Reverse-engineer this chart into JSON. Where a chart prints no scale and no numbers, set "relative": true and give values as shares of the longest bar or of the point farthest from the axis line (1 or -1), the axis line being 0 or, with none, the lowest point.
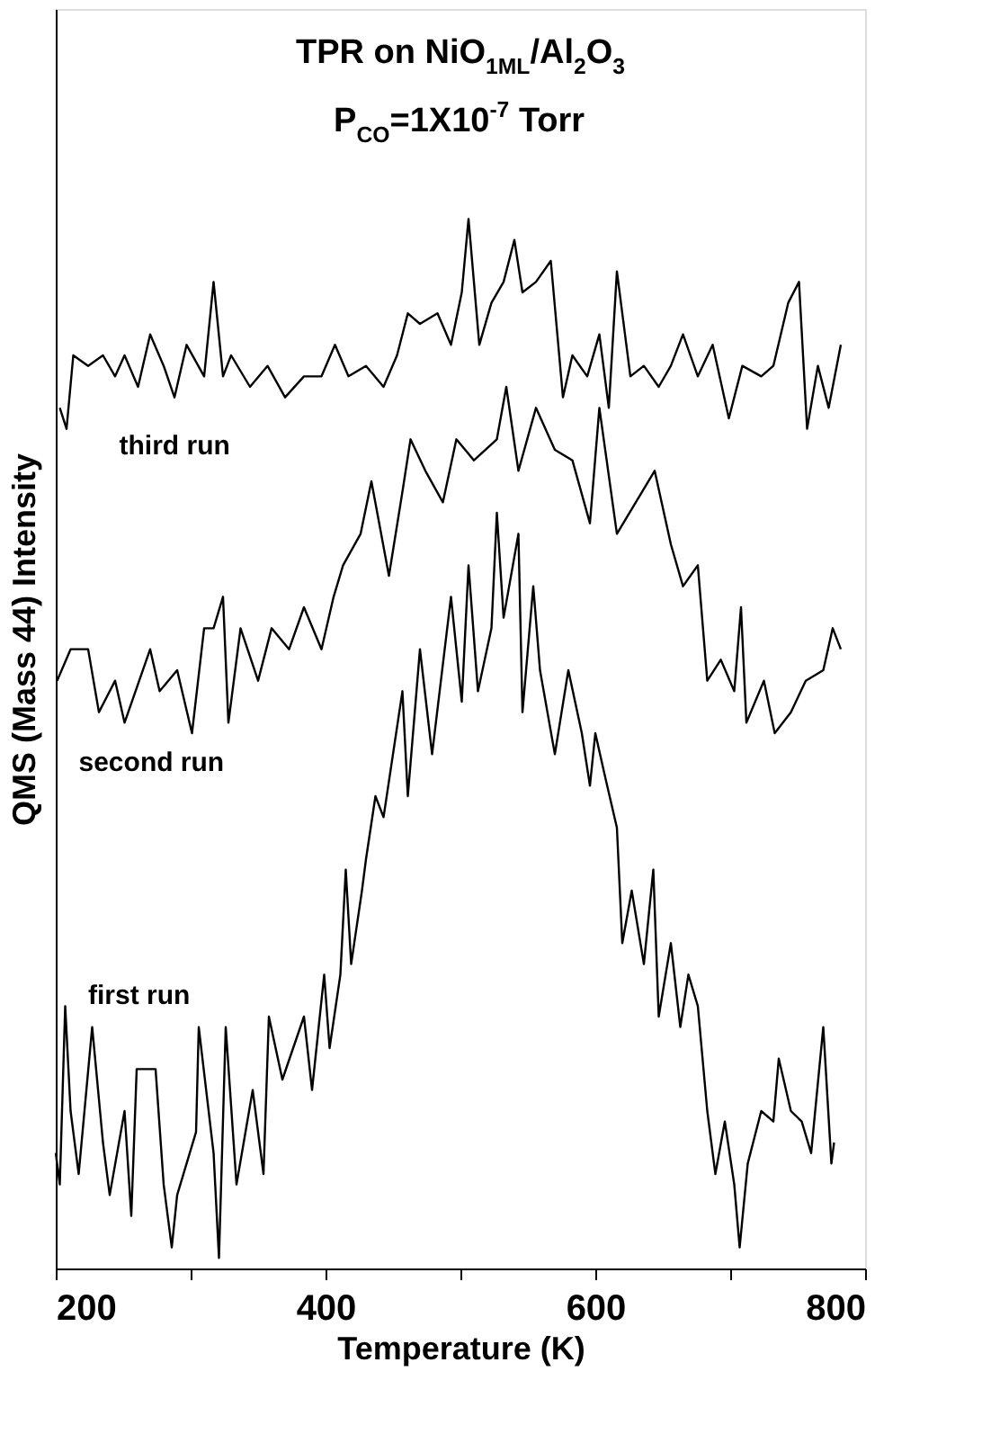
{
  "chart_data": {
    "type": "line",
    "title": "TPR on NiO$_{1ML}$/Al$_{2}$O$_{3}$",
    "subtitle": "P$_{CO}$=1X10$^{-7}$ Torr",
    "xlabel": "Temperature (K)",
    "ylabel": "QMS (Mass 44) Intensity",
    "relative": true,
    "xlim": [
      200,
      800
    ],
    "xticks": [
      200,
      {
        "value": 300,
        "label": null
      },
      400,
      {
        "value": 500,
        "label": null
      },
      600,
      {
        "value": 700,
        "label": null
      },
      800
    ],
    "grid": false,
    "marker": "none",
    "line_style": "solid",
    "series": [
      {
        "name": "third run",
        "color": "#000000",
        "x": [
          203,
          208,
          213,
          224,
          235,
          244,
          251,
          261,
          270,
          280,
          288,
          297,
          310,
          317,
          324,
          330,
          344,
          357,
          370,
          384,
          397,
          407,
          417,
          430,
          443,
          453,
          461,
          470,
          483,
          493,
          501,
          506,
          514,
          523,
          532,
          540,
          546,
          556,
          567,
          576,
          583,
          594,
          603,
          610,
          616,
          626,
          636,
          647,
          656,
          665,
          676,
          687,
          699,
          709,
          723,
          732,
          743,
          751,
          757,
          765,
          773,
          782
        ],
        "values": [
          0.82,
          0.8,
          0.87,
          0.86,
          0.87,
          0.85,
          0.87,
          0.84,
          0.89,
          0.86,
          0.83,
          0.88,
          0.85,
          0.94,
          0.85,
          0.87,
          0.84,
          0.86,
          0.83,
          0.85,
          0.85,
          0.88,
          0.85,
          0.86,
          0.84,
          0.87,
          0.91,
          0.9,
          0.91,
          0.88,
          0.93,
          1.0,
          0.88,
          0.92,
          0.94,
          0.98,
          0.93,
          0.94,
          0.96,
          0.83,
          0.87,
          0.85,
          0.89,
          0.82,
          0.95,
          0.85,
          0.86,
          0.84,
          0.86,
          0.89,
          0.85,
          0.88,
          0.81,
          0.86,
          0.85,
          0.86,
          0.92,
          0.94,
          0.8,
          0.86,
          0.82,
          0.88
        ]
      },
      {
        "name": "second run",
        "color": "#000000",
        "x": [
          201,
          211,
          224,
          232,
          244,
          251,
          270,
          277,
          290,
          301,
          310,
          317,
          324,
          328,
          337,
          350,
          360,
          373,
          384,
          397,
          406,
          413,
          426,
          434,
          447,
          457,
          463,
          474,
          487,
          497,
          510,
          527,
          534,
          543,
          556,
          570,
          583,
          596,
          603,
          616,
          630,
          644,
          656,
          665,
          676,
          683,
          693,
          703,
          708,
          712,
          725,
          733,
          745,
          756,
          769,
          776,
          782
        ],
        "values": [
          0.56,
          0.59,
          0.59,
          0.53,
          0.56,
          0.52,
          0.59,
          0.55,
          0.57,
          0.51,
          0.61,
          0.61,
          0.64,
          0.52,
          0.61,
          0.56,
          0.61,
          0.59,
          0.63,
          0.59,
          0.64,
          0.67,
          0.7,
          0.75,
          0.66,
          0.74,
          0.79,
          0.76,
          0.73,
          0.79,
          0.77,
          0.79,
          0.84,
          0.76,
          0.82,
          0.78,
          0.77,
          0.71,
          0.82,
          0.7,
          0.73,
          0.76,
          0.69,
          0.65,
          0.67,
          0.56,
          0.58,
          0.55,
          0.63,
          0.52,
          0.56,
          0.51,
          0.53,
          0.56,
          0.57,
          0.61,
          0.59
        ]
      },
      {
        "name": "first run",
        "color": "#000000",
        "x": [
          200,
          203,
          207,
          211,
          217,
          227,
          235,
          240,
          251,
          256,
          260,
          274,
          280,
          286,
          290,
          304,
          306,
          317,
          321,
          326,
          334,
          346,
          354,
          358,
          368,
          384,
          390,
          399,
          403,
          411,
          415,
          419,
          427,
          430,
          437,
          443,
          457,
          461,
          470,
          479,
          493,
          501,
          506,
          513,
          523,
          527,
          532,
          543,
          546,
          554,
          559,
          570,
          580,
          590,
          596,
          600,
          607,
          616,
          620,
          627,
          636,
          643,
          647,
          656,
          663,
          669,
          676,
          683,
          689,
          696,
          703,
          707,
          713,
          723,
          732,
          736,
          745,
          753,
          760,
          769,
          775,
          777
        ],
        "values": [
          0.11,
          0.08,
          0.25,
          0.15,
          0.09,
          0.23,
          0.12,
          0.07,
          0.15,
          0.05,
          0.19,
          0.19,
          0.08,
          0.02,
          0.07,
          0.13,
          0.23,
          0.11,
          0.01,
          0.23,
          0.08,
          0.17,
          0.09,
          0.24,
          0.18,
          0.24,
          0.17,
          0.28,
          0.21,
          0.28,
          0.38,
          0.29,
          0.36,
          0.39,
          0.45,
          0.43,
          0.55,
          0.45,
          0.59,
          0.49,
          0.64,
          0.54,
          0.67,
          0.55,
          0.61,
          0.72,
          0.62,
          0.7,
          0.53,
          0.65,
          0.57,
          0.49,
          0.57,
          0.51,
          0.46,
          0.51,
          0.47,
          0.42,
          0.31,
          0.36,
          0.29,
          0.38,
          0.24,
          0.31,
          0.23,
          0.28,
          0.25,
          0.15,
          0.09,
          0.14,
          0.08,
          0.02,
          0.1,
          0.15,
          0.14,
          0.2,
          0.15,
          0.14,
          0.11,
          0.23,
          0.1,
          0.12
        ]
      }
    ]
  }
}
